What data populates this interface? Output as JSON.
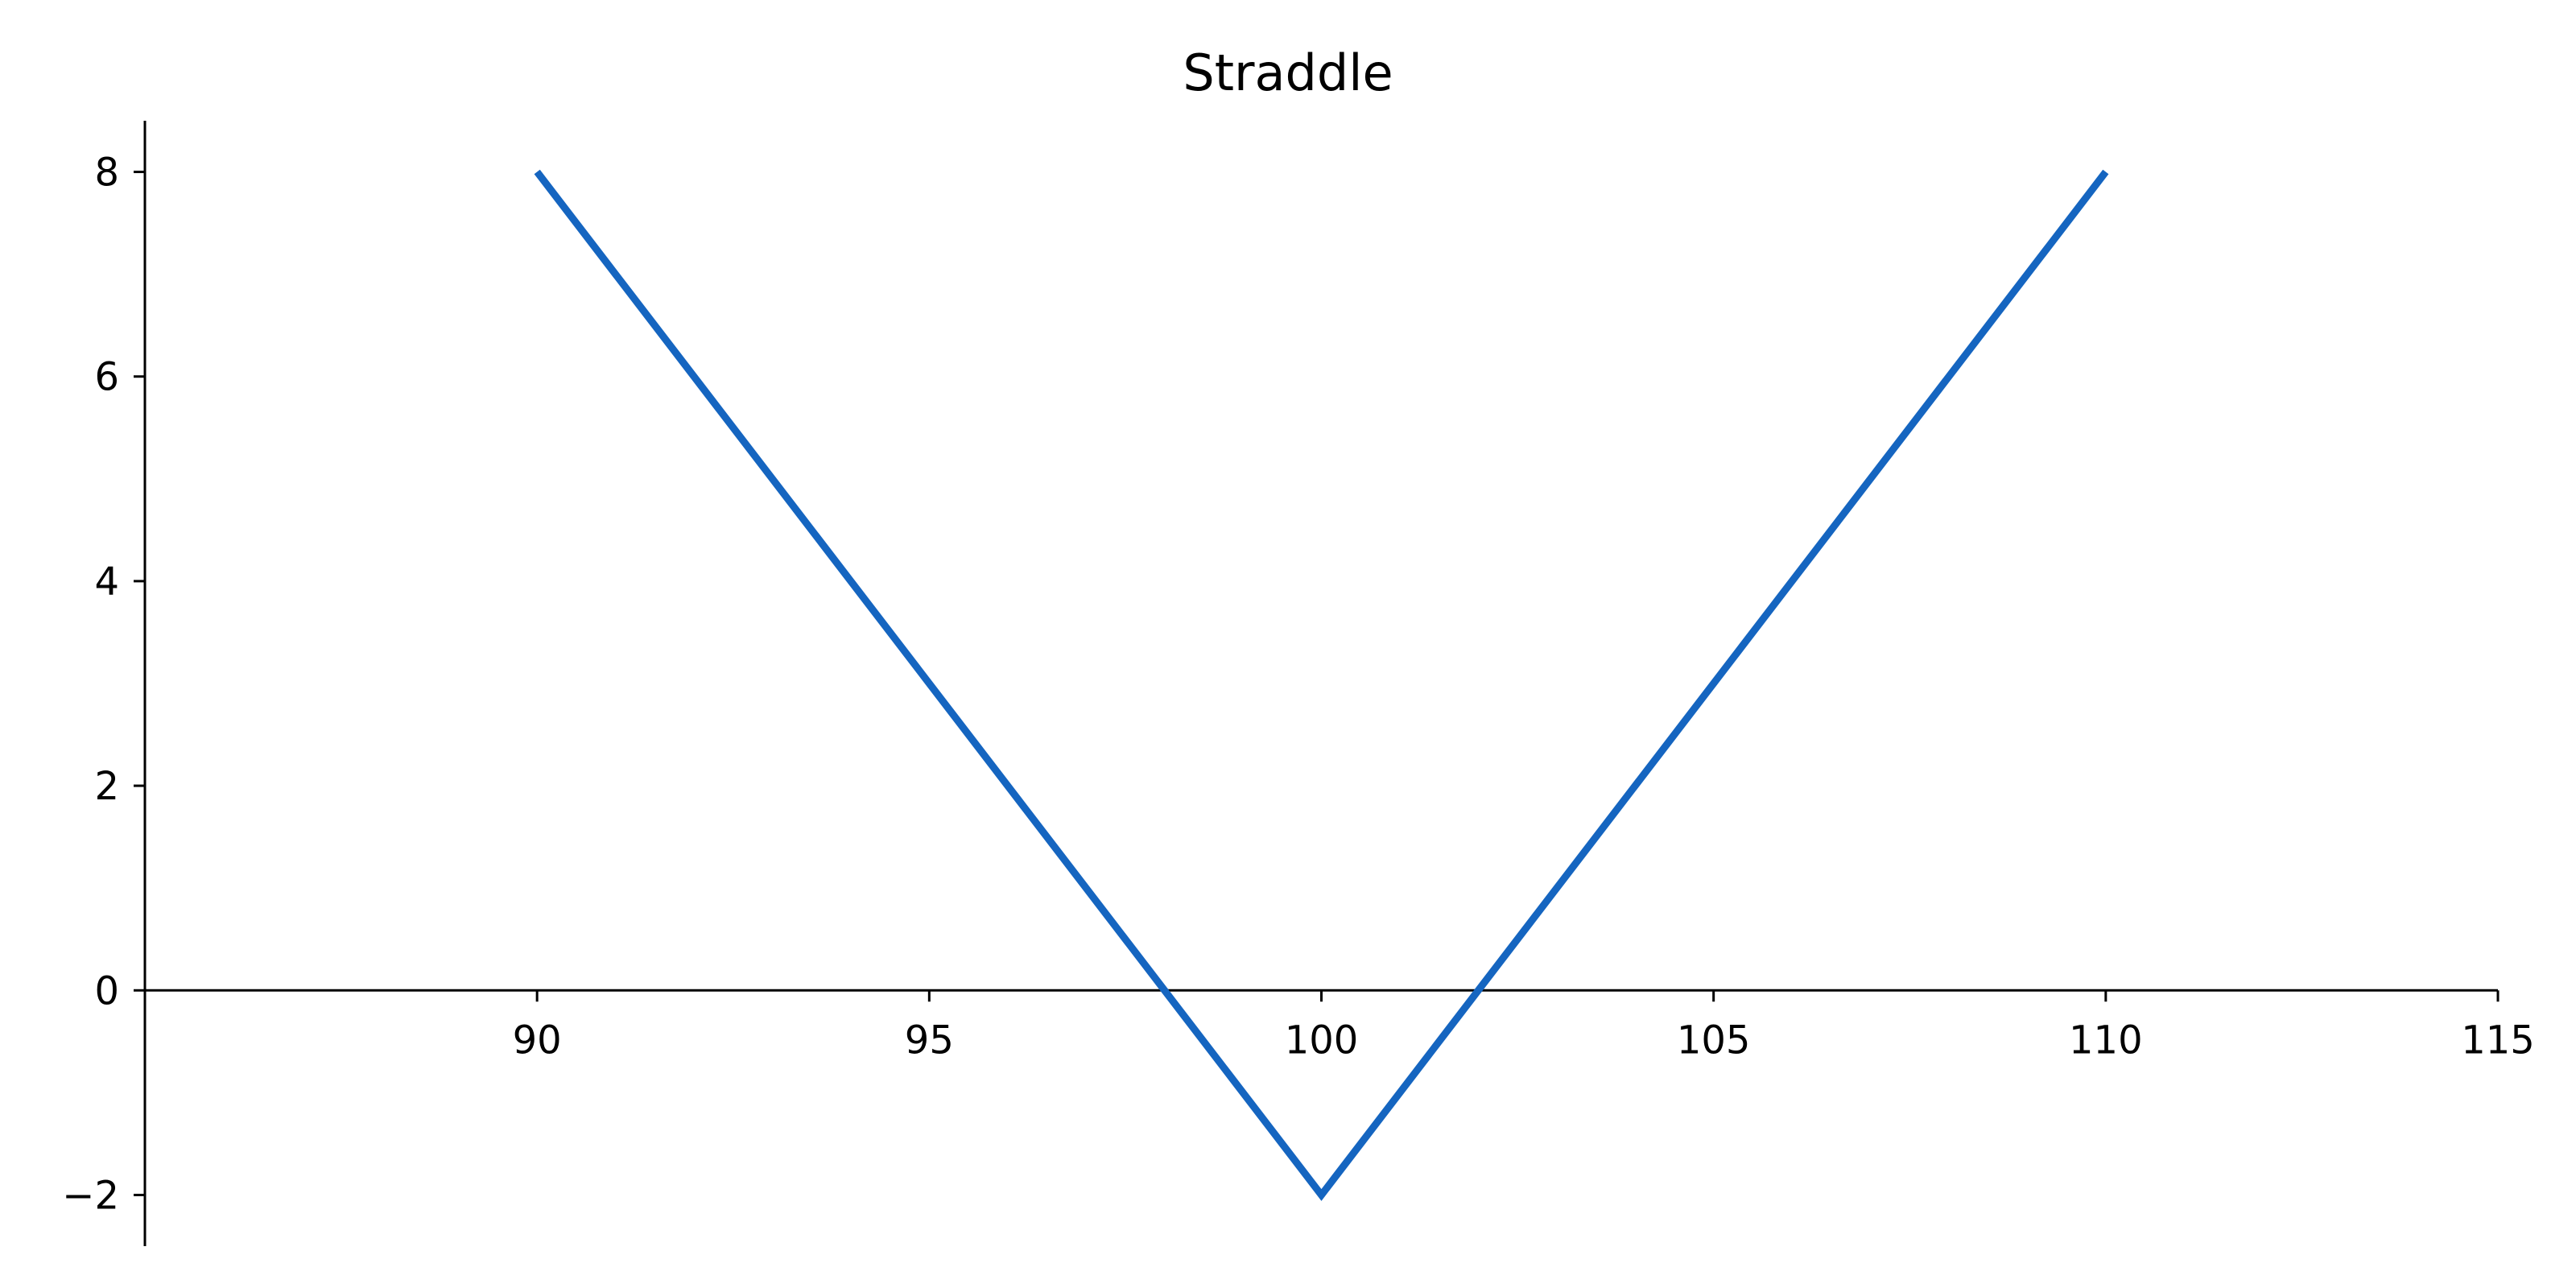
{
  "chart_data": {
    "type": "line",
    "title": "Straddle",
    "xlabel": "",
    "ylabel": "",
    "xlim": [
      85,
      115
    ],
    "ylim": [
      -2.5,
      8.5
    ],
    "x_ticks": [
      90,
      95,
      100,
      105,
      110,
      115
    ],
    "y_ticks": [
      -2,
      0,
      2,
      4,
      6,
      8
    ],
    "x_tick_labels": [
      "90",
      "95",
      "100",
      "105",
      "110",
      "115"
    ],
    "y_tick_labels": [
      "−2",
      "0",
      "2",
      "4",
      "6",
      "8"
    ],
    "grid": false,
    "legend": "none",
    "x_axis_position": "y = 0",
    "series": [
      {
        "color": "#1565c0",
        "x": [
          90,
          100,
          110
        ],
        "y": [
          8,
          -2,
          8
        ]
      }
    ]
  }
}
